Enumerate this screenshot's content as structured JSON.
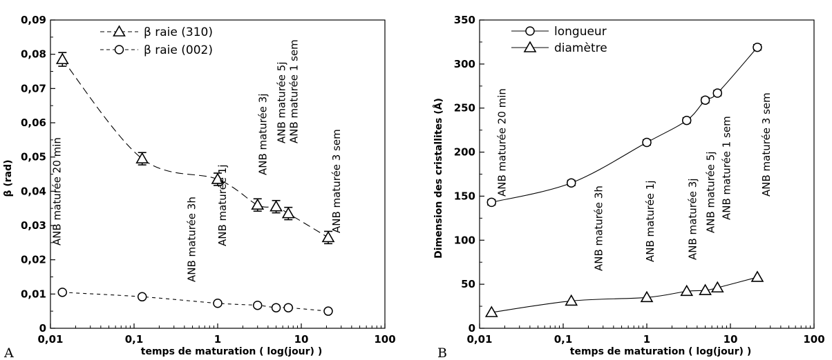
{
  "chart_data": [
    {
      "panel": "A",
      "type": "line",
      "xscale": "log",
      "xlim": [
        0.01,
        100
      ],
      "ylim": [
        0,
        0.09
      ],
      "xticks": [
        "0,01",
        "0,1",
        "1",
        "10",
        "100"
      ],
      "yticks": [
        "0",
        "0,01",
        "0,02",
        "0,03",
        "0,04",
        "0,05",
        "0,06",
        "0,07",
        "0,08",
        "0,09"
      ],
      "xlabel": "temps de maturation ( log(jour) )",
      "ylabel": "β (rad)",
      "legend_position": "top-left",
      "x": [
        0.0139,
        0.125,
        1,
        3,
        5,
        7,
        21
      ],
      "series": [
        {
          "name": "β raie (310)",
          "marker": "triangle",
          "line": "long-dash",
          "values": [
            0.0785,
            0.0495,
            0.0435,
            0.036,
            0.0355,
            0.0335,
            0.0265
          ],
          "errors": [
            0.002,
            0.0018,
            0.0018,
            0.0018,
            0.0018,
            0.0018,
            0.0018
          ]
        },
        {
          "name": "β raie (002)",
          "marker": "circle",
          "line": "short-dash",
          "values": [
            0.0105,
            0.0092,
            0.0073,
            0.0067,
            0.006,
            0.006,
            0.005
          ],
          "errors": [
            0,
            0,
            0,
            0,
            0,
            0,
            0
          ]
        }
      ],
      "annotations": [
        "ANB maturée 20 min",
        "ANB maturée 3h",
        "ANB maturée 1j",
        "ANB maturée 3j",
        "ANB maturée 5j",
        "ANB maturée 1 sem",
        "ANB maturée 3 sem"
      ]
    },
    {
      "panel": "B",
      "type": "line",
      "xscale": "log",
      "xlim": [
        0.01,
        100
      ],
      "ylim": [
        0,
        350
      ],
      "xticks": [
        "0,01",
        "0,1",
        "1",
        "10",
        "100"
      ],
      "yticks": [
        "0",
        "50",
        "100",
        "150",
        "200",
        "250",
        "300",
        "350"
      ],
      "xlabel": "temps de maturation ( log(jour) )",
      "ylabel": "Dimension des cristallites (Å)",
      "legend_position": "top-left",
      "x": [
        0.0139,
        0.125,
        1,
        3,
        5,
        7,
        21
      ],
      "series": [
        {
          "name": "longueur",
          "marker": "circle",
          "line": "solid",
          "values": [
            143,
            165,
            211,
            236,
            259,
            267,
            319
          ],
          "errors": [
            3,
            3,
            3,
            3,
            3,
            3,
            3
          ]
        },
        {
          "name": "diamètre",
          "marker": "triangle",
          "line": "solid",
          "values": [
            18,
            31,
            35,
            42,
            43,
            46,
            58
          ],
          "errors": [
            0,
            0,
            0,
            0,
            0,
            0,
            0
          ]
        }
      ],
      "annotations": [
        "ANB maturée 20 min",
        "ANB maturée 3h",
        "ANB maturée 1j",
        "ANB maturée 3j",
        "ANB maturée 5j",
        "ANB maturée 1 sem",
        "ANB maturée 3 sem"
      ]
    }
  ],
  "panel_letters": [
    "A",
    "B"
  ],
  "colors": {
    "ink": "#000000",
    "background": "#ffffff"
  }
}
